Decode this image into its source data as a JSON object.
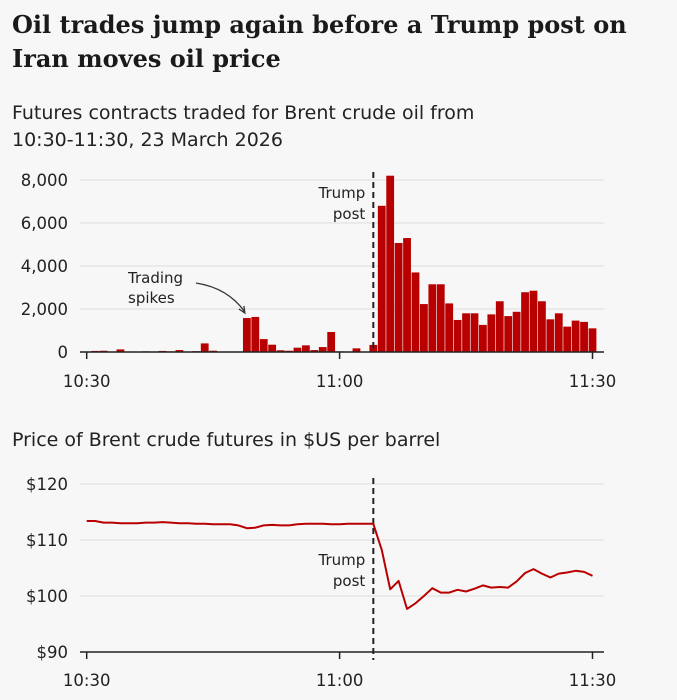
{
  "title_lines": [
    "Oil trades jump again before a Trump post on",
    "Iran moves oil price"
  ],
  "colors": {
    "bar": "#b80000",
    "line": "#b80000",
    "annotation": "#222222",
    "background": "#f7f7f7"
  },
  "chart_data": [
    {
      "type": "bar",
      "title_lines": [
        "Futures contracts traded for Brent crude oil from",
        "10:30-11:30, 23 March 2026"
      ],
      "x_ticks": [
        "10:30",
        "11:00",
        "11:30"
      ],
      "y_ticks": [
        "0",
        "2,000",
        "4,000",
        "6,000",
        "8,000"
      ],
      "y_tick_values": [
        0,
        2000,
        4000,
        6000,
        8000
      ],
      "ylim": [
        0,
        8000
      ],
      "grid": true,
      "x_unit": "minute",
      "x": [
        "10:30",
        "10:31",
        "10:32",
        "10:33",
        "10:34",
        "10:35",
        "10:36",
        "10:37",
        "10:38",
        "10:39",
        "10:40",
        "10:41",
        "10:42",
        "10:43",
        "10:44",
        "10:45",
        "10:46",
        "10:47",
        "10:48",
        "10:49",
        "10:50",
        "10:51",
        "10:52",
        "10:53",
        "10:54",
        "10:55",
        "10:56",
        "10:57",
        "10:58",
        "10:59",
        "11:00",
        "11:01",
        "11:02",
        "11:03",
        "11:04",
        "11:05",
        "11:06",
        "11:07",
        "11:08",
        "11:09",
        "11:10",
        "11:11",
        "11:12",
        "11:13",
        "11:14",
        "11:15",
        "11:16",
        "11:17",
        "11:18",
        "11:19",
        "11:20",
        "11:21",
        "11:22",
        "11:23",
        "11:24",
        "11:25",
        "11:26",
        "11:27",
        "11:28",
        "11:29",
        "11:30"
      ],
      "values": [
        0,
        50,
        60,
        10,
        120,
        10,
        20,
        30,
        20,
        50,
        30,
        90,
        20,
        40,
        400,
        60,
        20,
        15,
        10,
        1580,
        1630,
        600,
        340,
        80,
        60,
        200,
        310,
        90,
        230,
        930,
        30,
        0,
        170,
        0,
        330,
        6800,
        8200,
        5070,
        5300,
        3700,
        2230,
        3150,
        3150,
        2260,
        1490,
        1800,
        1800,
        1260,
        1750,
        2360,
        1670,
        1870,
        2780,
        2850,
        2360,
        1520,
        1800,
        1180,
        1460,
        1400,
        1100
      ],
      "annotations": [
        {
          "label_lines": [
            "Trump",
            "post"
          ],
          "x": "11:04",
          "style": "dashed-line"
        },
        {
          "label_lines": [
            "Trading",
            "spikes"
          ],
          "x": "10:49",
          "style": "curved-arrow"
        }
      ]
    },
    {
      "type": "line",
      "title_lines": [
        "Price of Brent crude futures in $US per barrel"
      ],
      "x_ticks": [
        "10:30",
        "11:00",
        "11:30"
      ],
      "y_ticks": [
        "$90",
        "$100",
        "$110",
        "$120"
      ],
      "y_tick_values": [
        90,
        100,
        110,
        120
      ],
      "ylim": [
        90,
        120
      ],
      "grid": true,
      "x_unit": "minute",
      "x": [
        "10:30",
        "10:31",
        "10:32",
        "10:33",
        "10:34",
        "10:35",
        "10:36",
        "10:37",
        "10:38",
        "10:39",
        "10:40",
        "10:41",
        "10:42",
        "10:43",
        "10:44",
        "10:45",
        "10:46",
        "10:47",
        "10:48",
        "10:49",
        "10:50",
        "10:51",
        "10:52",
        "10:53",
        "10:54",
        "10:55",
        "10:56",
        "10:57",
        "10:58",
        "10:59",
        "11:00",
        "11:01",
        "11:02",
        "11:03",
        "11:04",
        "11:05",
        "11:06",
        "11:07",
        "11:08",
        "11:09",
        "11:10",
        "11:11",
        "11:12",
        "11:13",
        "11:14",
        "11:15",
        "11:16",
        "11:17",
        "11:18",
        "11:19",
        "11:20",
        "11:21",
        "11:22",
        "11:23",
        "11:24",
        "11:25",
        "11:26",
        "11:27",
        "11:28",
        "11:29",
        "11:30"
      ],
      "values": [
        113.4,
        113.4,
        113.1,
        113.1,
        113.0,
        113.0,
        113.0,
        113.1,
        113.1,
        113.2,
        113.1,
        113.0,
        113.0,
        112.9,
        112.9,
        112.8,
        112.8,
        112.8,
        112.6,
        112.1,
        112.2,
        112.6,
        112.7,
        112.6,
        112.6,
        112.8,
        112.9,
        112.9,
        112.9,
        112.8,
        112.8,
        112.9,
        112.9,
        112.9,
        112.9,
        108.2,
        101.2,
        102.7,
        97.7,
        98.7,
        100.0,
        101.4,
        100.6,
        100.6,
        101.1,
        100.8,
        101.3,
        101.9,
        101.5,
        101.6,
        101.5,
        102.6,
        104.1,
        104.8,
        104.0,
        103.3,
        104.0,
        104.2,
        104.5,
        104.3,
        103.6
      ],
      "annotations": [
        {
          "label_lines": [
            "Trump",
            "post"
          ],
          "x": "11:04",
          "style": "dashed-line"
        }
      ]
    }
  ]
}
